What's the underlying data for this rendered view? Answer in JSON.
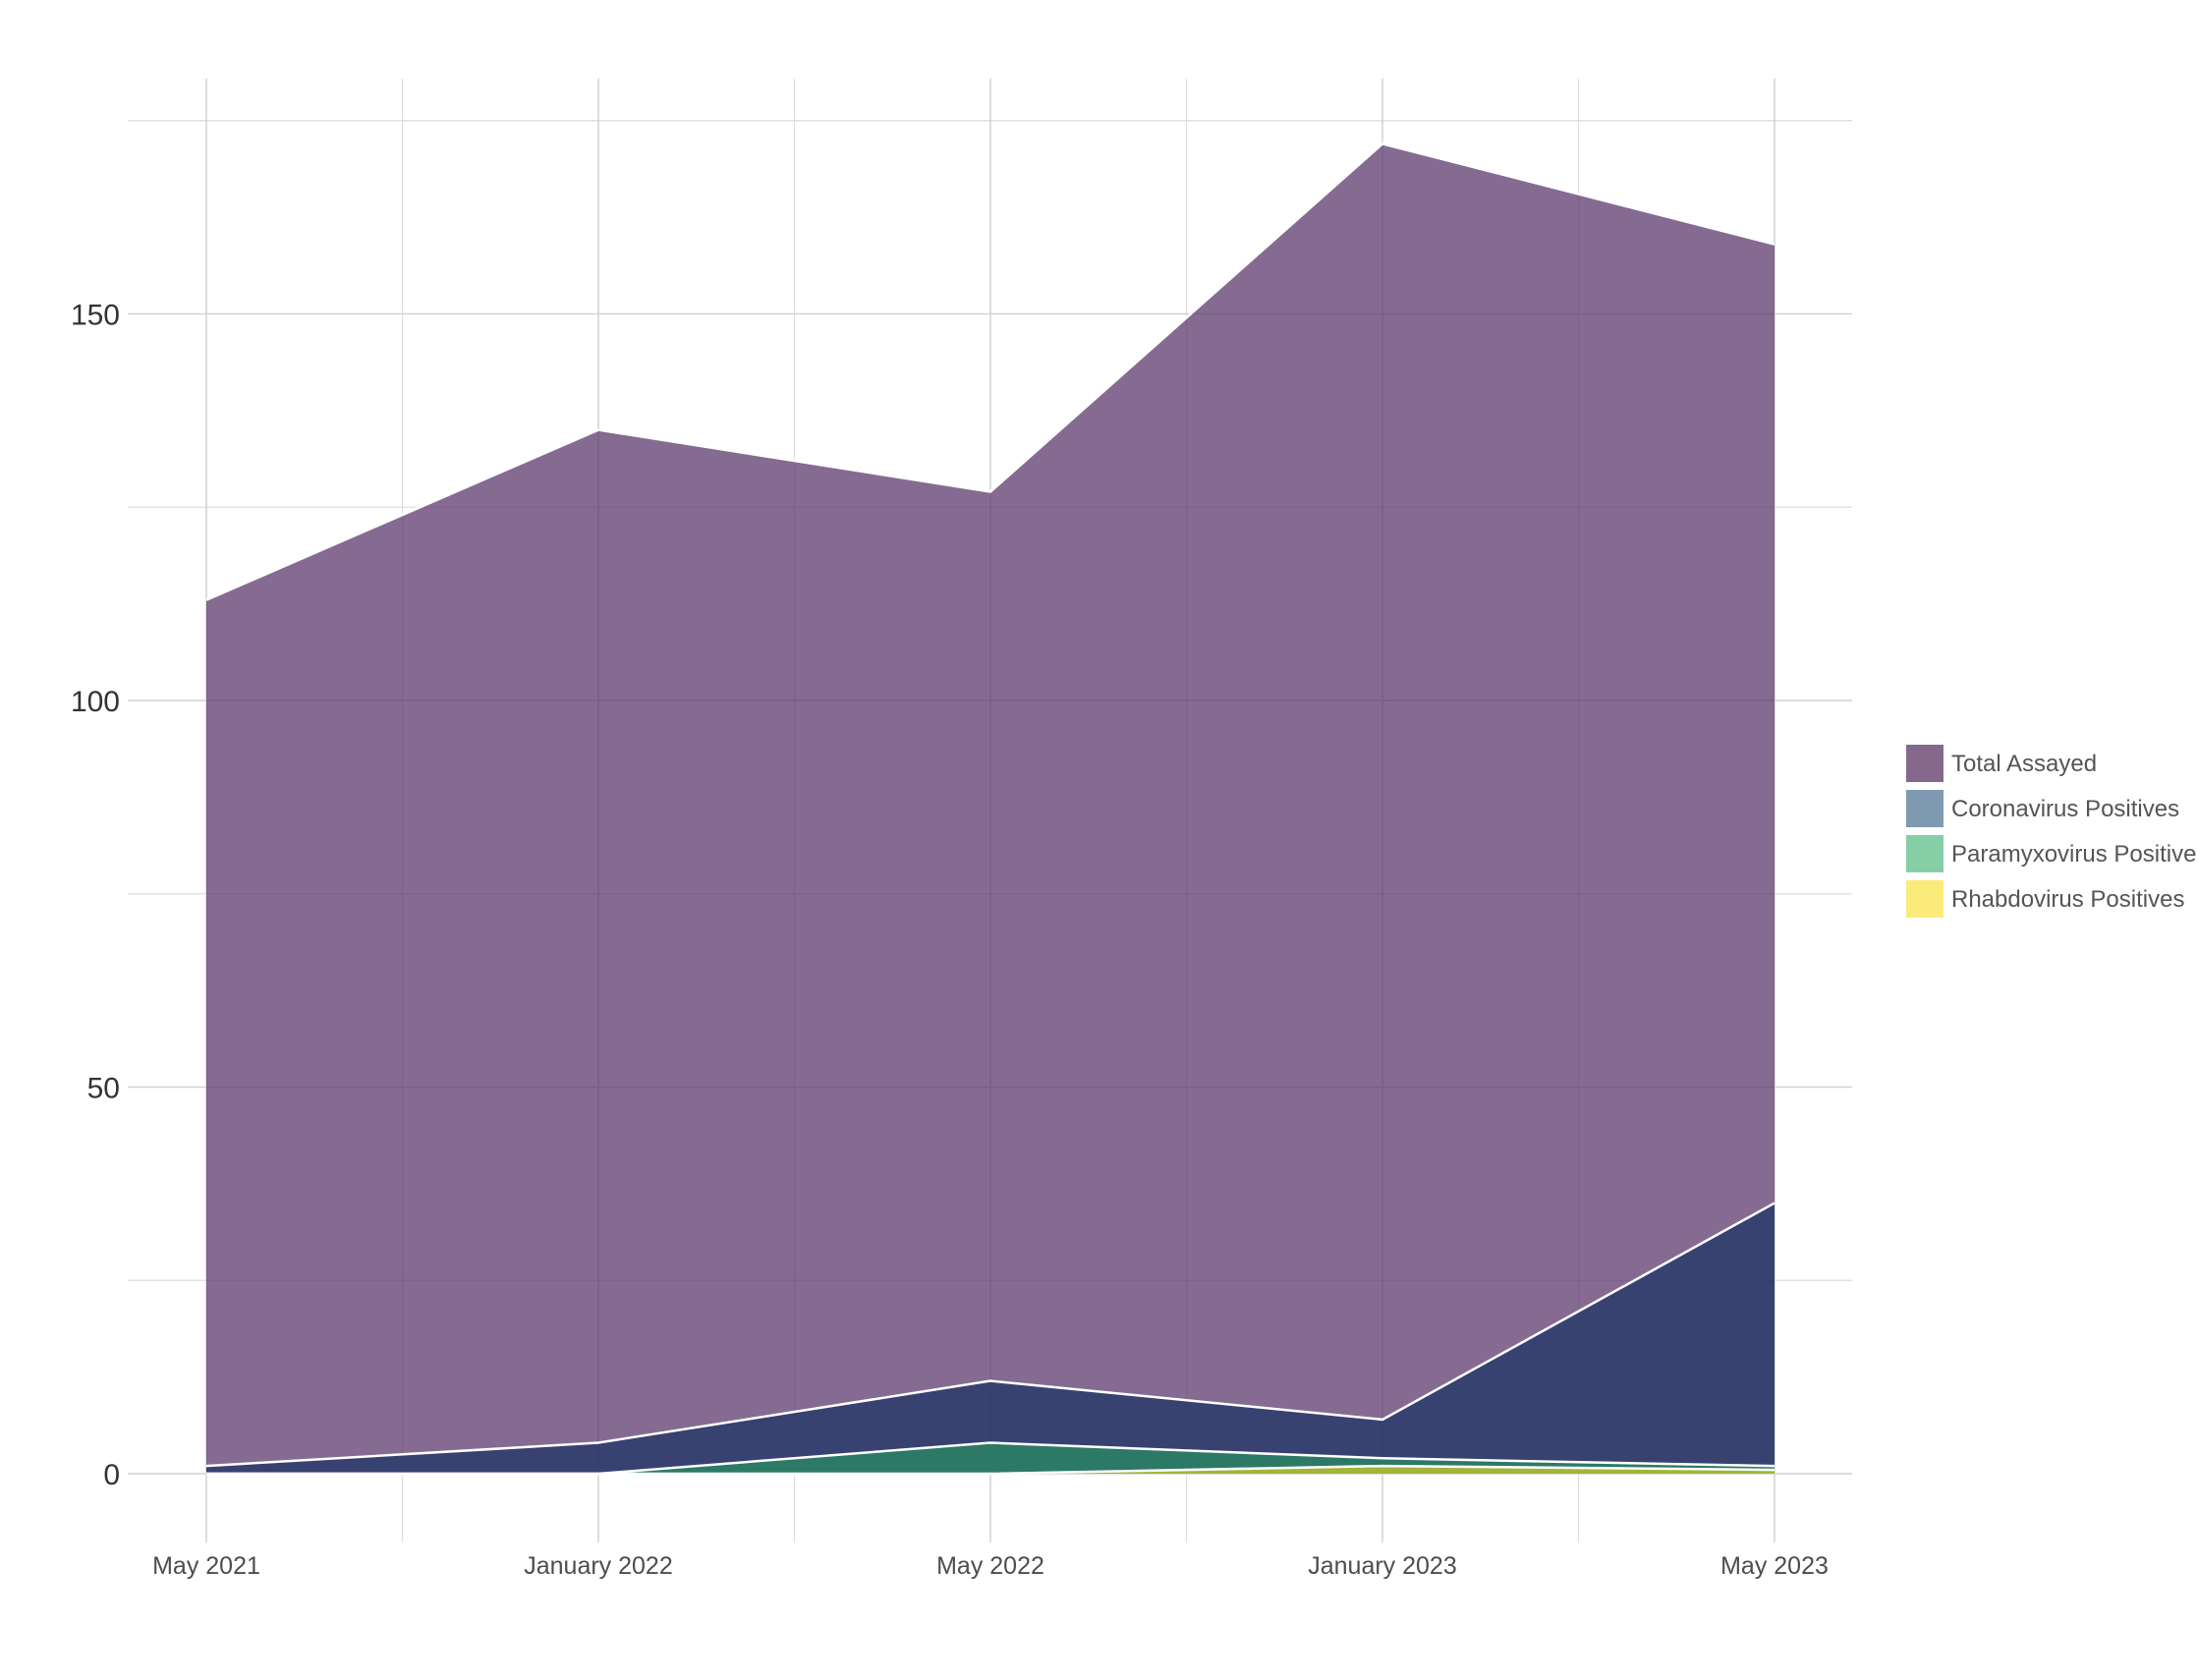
{
  "chart_data": {
    "type": "area",
    "title": "",
    "xlabel": "",
    "ylabel": "",
    "x": [
      "May 2021",
      "January 2022",
      "May 2022",
      "January 2023",
      "May 2023"
    ],
    "x_ticks": [
      "May 2021",
      "January 2022",
      "May 2022",
      "January 2023",
      "May 2023"
    ],
    "y_ticks": [
      0,
      50,
      100,
      150
    ],
    "ylim": [
      -8.5,
      180
    ],
    "grid": true,
    "legend_position": "right",
    "series": [
      {
        "name": "Total Assayed",
        "values": [
          113,
          135,
          127,
          172,
          159
        ],
        "color": "#5c3a6e"
      },
      {
        "name": "Coronavirus Positives",
        "values": [
          1,
          4,
          12,
          7,
          35
        ],
        "color": "#1e3466"
      },
      {
        "name": "Paramyxovirus Positives",
        "values": [
          0,
          0,
          4,
          2,
          1
        ],
        "color": "#2a8c63"
      },
      {
        "name": "Rhabdovirus Positives",
        "values": [
          0,
          0,
          0,
          1,
          0.5
        ],
        "color": "#c9c92a"
      }
    ],
    "legend": [
      {
        "label": "Total Assayed",
        "color": "#86688d"
      },
      {
        "label": "Coronavirus Positives",
        "color": "#7f9ab0"
      },
      {
        "label": "Paramyxovirus Positives",
        "color": "#86cfa6"
      },
      {
        "label": "Rhabdovirus Positives",
        "color": "#faeb7a"
      }
    ]
  }
}
